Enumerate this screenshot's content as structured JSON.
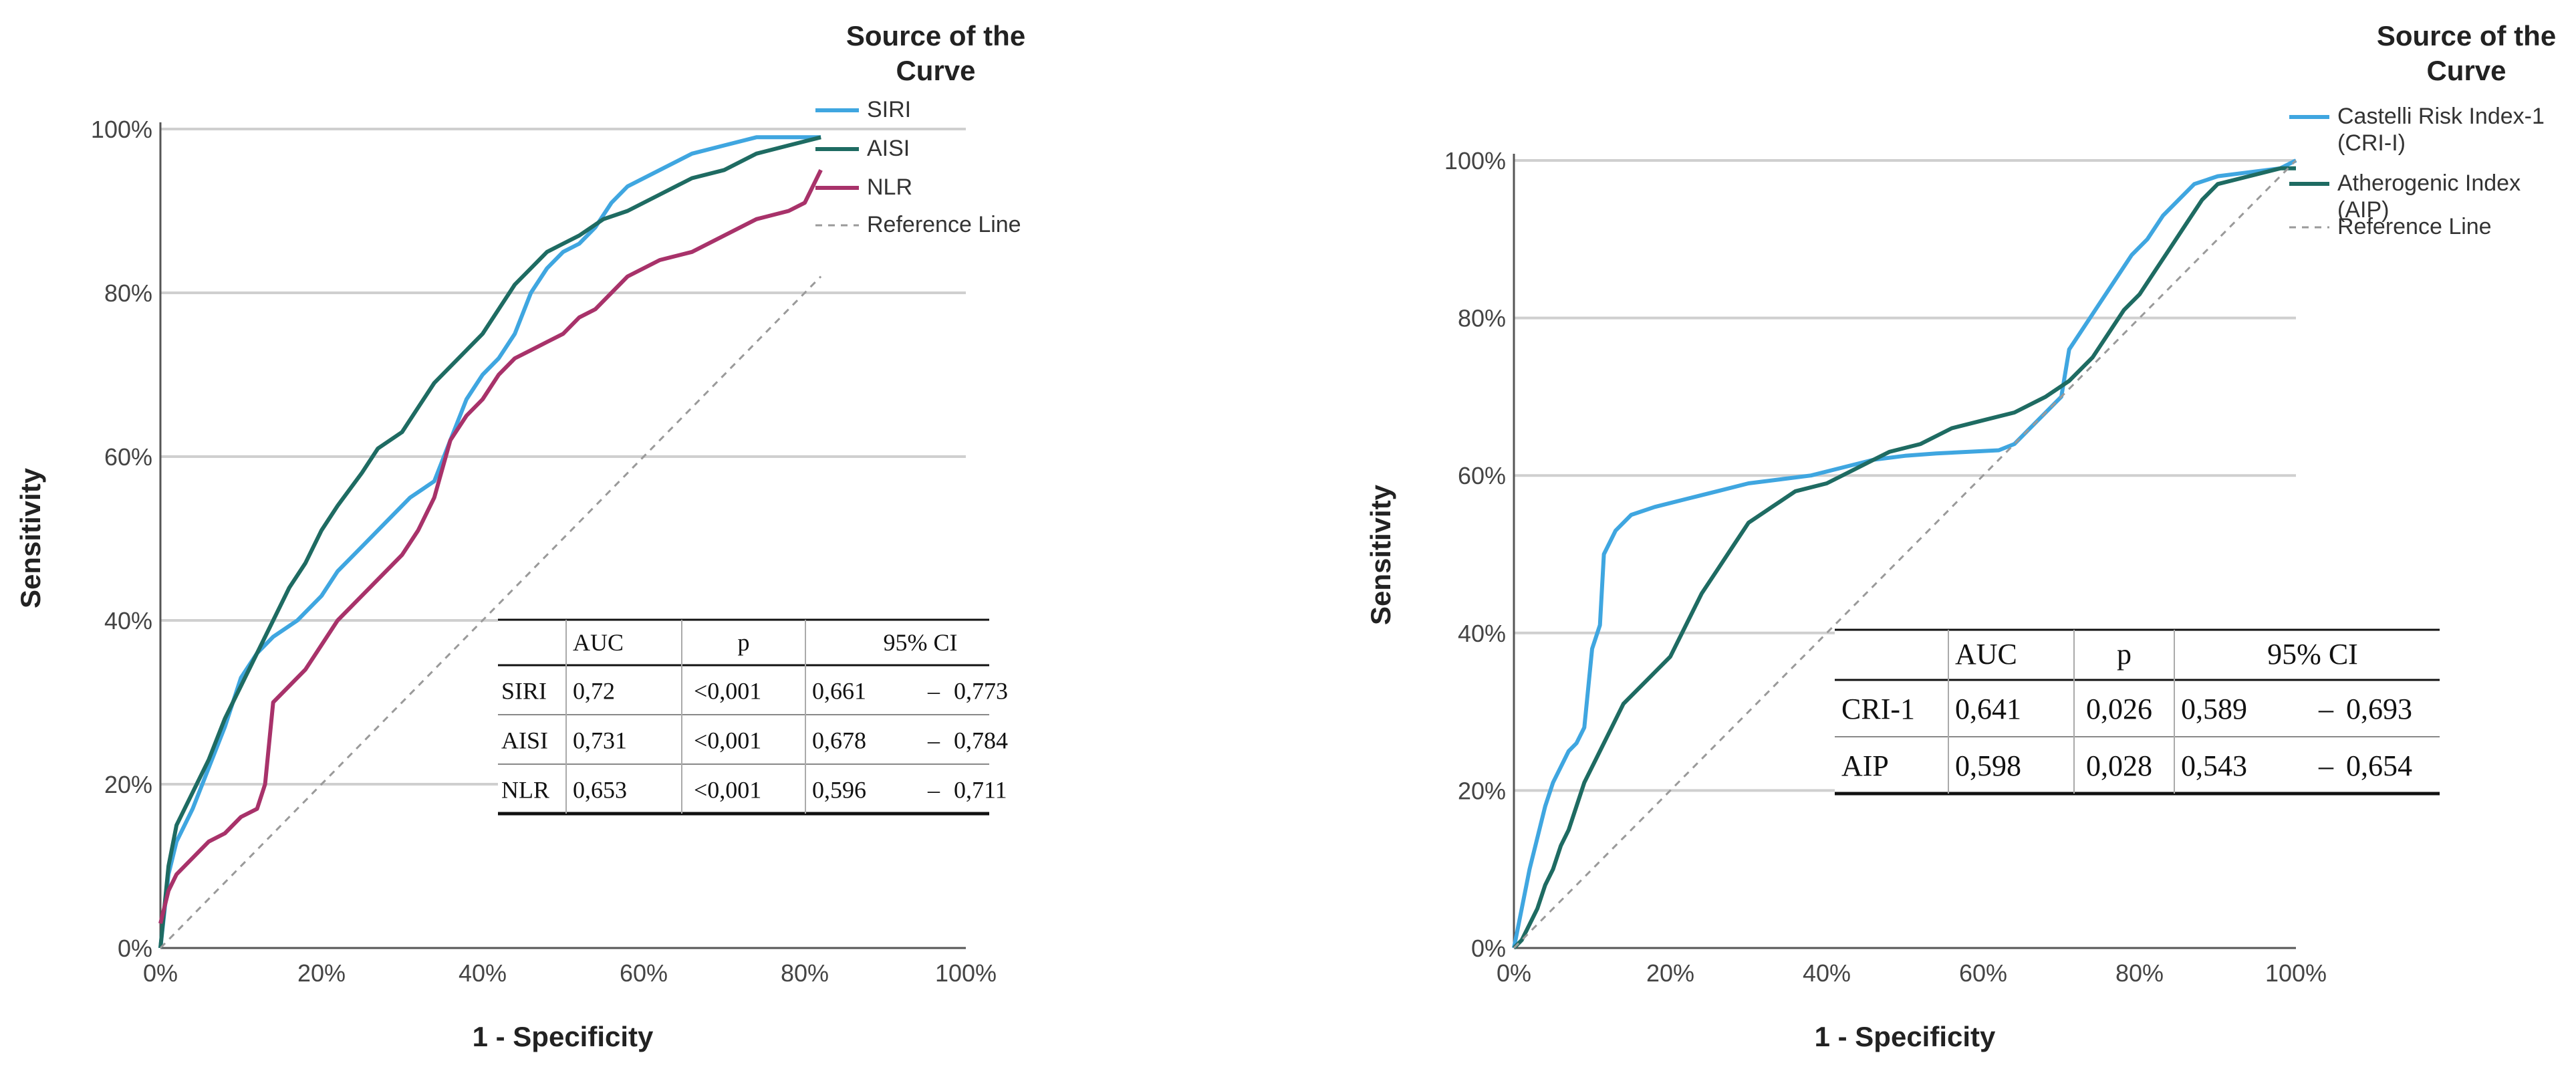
{
  "chart_data": [
    {
      "type": "line",
      "xlabel": "1 - Specificity",
      "ylabel": "Sensitivity",
      "xlim": [
        0,
        100
      ],
      "ylim": [
        0,
        100
      ],
      "x_ticks": [
        "0%",
        "20%",
        "40%",
        "60%",
        "80%",
        "100%"
      ],
      "y_ticks": [
        "0%",
        "20%",
        "40%",
        "60%",
        "80%",
        "100%"
      ],
      "grid": "horizontal",
      "legend": {
        "title": "Source of the Curve",
        "placement": "top-right"
      },
      "colors": {
        "SIRI": "#3fa6e0",
        "AISI": "#1e6b62",
        "NLR": "#a8326a",
        "Reference Line": "#9a9a9a"
      },
      "series": [
        {
          "name": "SIRI",
          "points": [
            [
              0,
              0
            ],
            [
              1,
              9
            ],
            [
              2,
              13
            ],
            [
              4,
              17
            ],
            [
              6,
              22
            ],
            [
              8,
              27
            ],
            [
              10,
              33
            ],
            [
              12,
              36
            ],
            [
              14,
              38
            ],
            [
              17,
              40
            ],
            [
              20,
              43
            ],
            [
              22,
              46
            ],
            [
              25,
              49
            ],
            [
              28,
              52
            ],
            [
              31,
              55
            ],
            [
              34,
              57
            ],
            [
              36,
              62
            ],
            [
              38,
              67
            ],
            [
              40,
              70
            ],
            [
              42,
              72
            ],
            [
              44,
              75
            ],
            [
              46,
              80
            ],
            [
              48,
              83
            ],
            [
              50,
              85
            ],
            [
              52,
              86
            ],
            [
              54,
              88
            ],
            [
              56,
              91
            ],
            [
              58,
              93
            ],
            [
              62,
              95
            ],
            [
              66,
              97
            ],
            [
              70,
              98
            ],
            [
              74,
              99
            ],
            [
              78,
              99
            ],
            [
              82,
              99
            ]
          ]
        },
        {
          "name": "AISI",
          "points": [
            [
              0,
              0
            ],
            [
              1,
              10
            ],
            [
              2,
              15
            ],
            [
              4,
              19
            ],
            [
              6,
              23
            ],
            [
              8,
              28
            ],
            [
              10,
              32
            ],
            [
              12,
              36
            ],
            [
              14,
              40
            ],
            [
              16,
              44
            ],
            [
              18,
              47
            ],
            [
              20,
              51
            ],
            [
              22,
              54
            ],
            [
              25,
              58
            ],
            [
              27,
              61
            ],
            [
              30,
              63
            ],
            [
              32,
              66
            ],
            [
              34,
              69
            ],
            [
              36,
              71
            ],
            [
              38,
              73
            ],
            [
              40,
              75
            ],
            [
              42,
              78
            ],
            [
              44,
              81
            ],
            [
              46,
              83
            ],
            [
              48,
              85
            ],
            [
              50,
              86
            ],
            [
              52,
              87
            ],
            [
              55,
              89
            ],
            [
              58,
              90
            ],
            [
              62,
              92
            ],
            [
              66,
              94
            ],
            [
              70,
              95
            ],
            [
              74,
              97
            ],
            [
              78,
              98
            ],
            [
              82,
              99
            ]
          ]
        },
        {
          "name": "NLR",
          "points": [
            [
              0,
              3
            ],
            [
              1,
              7
            ],
            [
              2,
              9
            ],
            [
              4,
              11
            ],
            [
              6,
              13
            ],
            [
              8,
              14
            ],
            [
              10,
              16
            ],
            [
              12,
              17
            ],
            [
              13,
              20
            ],
            [
              14,
              30
            ],
            [
              16,
              32
            ],
            [
              18,
              34
            ],
            [
              20,
              37
            ],
            [
              22,
              40
            ],
            [
              24,
              42
            ],
            [
              26,
              44
            ],
            [
              28,
              46
            ],
            [
              30,
              48
            ],
            [
              32,
              51
            ],
            [
              34,
              55
            ],
            [
              36,
              62
            ],
            [
              38,
              65
            ],
            [
              40,
              67
            ],
            [
              42,
              70
            ],
            [
              44,
              72
            ],
            [
              46,
              73
            ],
            [
              48,
              74
            ],
            [
              50,
              75
            ],
            [
              52,
              77
            ],
            [
              54,
              78
            ],
            [
              56,
              80
            ],
            [
              58,
              82
            ],
            [
              62,
              84
            ],
            [
              66,
              85
            ],
            [
              70,
              87
            ],
            [
              74,
              89
            ],
            [
              78,
              90
            ],
            [
              80,
              91
            ],
            [
              82,
              95
            ]
          ]
        },
        {
          "name": "Reference Line",
          "points": [
            [
              0,
              0
            ],
            [
              82,
              82
            ]
          ]
        }
      ],
      "table": {
        "headers": [
          "",
          "AUC",
          "p",
          "95% CI",
          ""
        ],
        "rows": [
          {
            "label": "SIRI",
            "auc": "0,72",
            "p": "<0,001",
            "ci_low": "0,661",
            "dash": "–",
            "ci_high": "0,773"
          },
          {
            "label": "AISI",
            "auc": "0,731",
            "p": "<0,001",
            "ci_low": "0,678",
            "dash": "–",
            "ci_high": "0,784"
          },
          {
            "label": "NLR",
            "auc": "0,653",
            "p": "<0,001",
            "ci_low": "0,596",
            "dash": "–",
            "ci_high": "0,711"
          }
        ]
      }
    },
    {
      "type": "line",
      "xlabel": "1 - Specificity",
      "ylabel": "Sensitivity",
      "xlim": [
        0,
        100
      ],
      "ylim": [
        0,
        100
      ],
      "x_ticks": [
        "0%",
        "20%",
        "40%",
        "60%",
        "80%",
        "100%"
      ],
      "y_ticks": [
        "0%",
        "20%",
        "40%",
        "60%",
        "80%",
        "100%"
      ],
      "grid": "horizontal",
      "legend": {
        "title": "Source of the Curve",
        "placement": "top-right"
      },
      "colors": {
        "Castelli Risk Index-1 (CRI-I)": "#3fa6e0",
        "Atherogenic Index (AIP)": "#1e6b62",
        "Reference Line": "#9a9a9a"
      },
      "series": [
        {
          "name": "Castelli Risk Index-1 (CRI-I)",
          "points": [
            [
              0,
              0
            ],
            [
              1,
              5
            ],
            [
              2,
              10
            ],
            [
              3,
              14
            ],
            [
              4,
              18
            ],
            [
              5,
              21
            ],
            [
              6,
              23
            ],
            [
              7,
              25
            ],
            [
              8,
              26
            ],
            [
              9,
              28
            ],
            [
              10,
              38
            ],
            [
              11,
              41
            ],
            [
              11.5,
              50
            ],
            [
              13,
              53
            ],
            [
              15,
              55
            ],
            [
              18,
              56
            ],
            [
              22,
              57
            ],
            [
              26,
              58
            ],
            [
              30,
              59
            ],
            [
              34,
              59.5
            ],
            [
              38,
              60
            ],
            [
              42,
              61
            ],
            [
              46,
              62
            ],
            [
              50,
              62.5
            ],
            [
              54,
              62.8
            ],
            [
              58,
              63
            ],
            [
              62,
              63.2
            ],
            [
              64,
              64
            ],
            [
              66,
              66
            ],
            [
              68,
              68
            ],
            [
              70,
              70
            ],
            [
              71,
              76
            ],
            [
              73,
              79
            ],
            [
              75,
              82
            ],
            [
              77,
              85
            ],
            [
              79,
              88
            ],
            [
              81,
              90
            ],
            [
              83,
              93
            ],
            [
              85,
              95
            ],
            [
              87,
              97
            ],
            [
              90,
              98
            ],
            [
              94,
              98.5
            ],
            [
              98,
              99
            ],
            [
              100,
              100
            ]
          ]
        },
        {
          "name": "Atherogenic Index (AIP)",
          "points": [
            [
              0,
              0
            ],
            [
              1,
              1
            ],
            [
              2,
              3
            ],
            [
              3,
              5
            ],
            [
              4,
              8
            ],
            [
              5,
              10
            ],
            [
              6,
              13
            ],
            [
              7,
              15
            ],
            [
              8,
              18
            ],
            [
              9,
              21
            ],
            [
              10,
              23
            ],
            [
              11,
              25
            ],
            [
              12,
              27
            ],
            [
              14,
              31
            ],
            [
              16,
              33
            ],
            [
              18,
              35
            ],
            [
              20,
              37
            ],
            [
              22,
              41
            ],
            [
              24,
              45
            ],
            [
              26,
              48
            ],
            [
              28,
              51
            ],
            [
              30,
              54
            ],
            [
              33,
              56
            ],
            [
              36,
              58
            ],
            [
              40,
              59
            ],
            [
              44,
              61
            ],
            [
              48,
              63
            ],
            [
              52,
              64
            ],
            [
              56,
              66
            ],
            [
              60,
              67
            ],
            [
              64,
              68
            ],
            [
              68,
              70
            ],
            [
              71,
              72
            ],
            [
              74,
              75
            ],
            [
              76,
              78
            ],
            [
              78,
              81
            ],
            [
              80,
              83
            ],
            [
              82,
              86
            ],
            [
              84,
              89
            ],
            [
              86,
              92
            ],
            [
              88,
              95
            ],
            [
              90,
              97
            ],
            [
              94,
              98
            ],
            [
              98,
              99
            ],
            [
              100,
              99
            ]
          ]
        },
        {
          "name": "Reference Line",
          "points": [
            [
              0,
              0
            ],
            [
              100,
              100
            ]
          ]
        }
      ],
      "table": {
        "headers": [
          "",
          "AUC",
          "p",
          "95% CI",
          ""
        ],
        "rows": [
          {
            "label": "CRI-1",
            "auc": "0,641",
            "p": "0,026",
            "ci_low": "0,589",
            "dash": "–",
            "ci_high": "0,693"
          },
          {
            "label": "AIP",
            "auc": "0,598",
            "p": "0,028",
            "ci_low": "0,543",
            "dash": "–",
            "ci_high": "0,654"
          }
        ]
      }
    }
  ]
}
